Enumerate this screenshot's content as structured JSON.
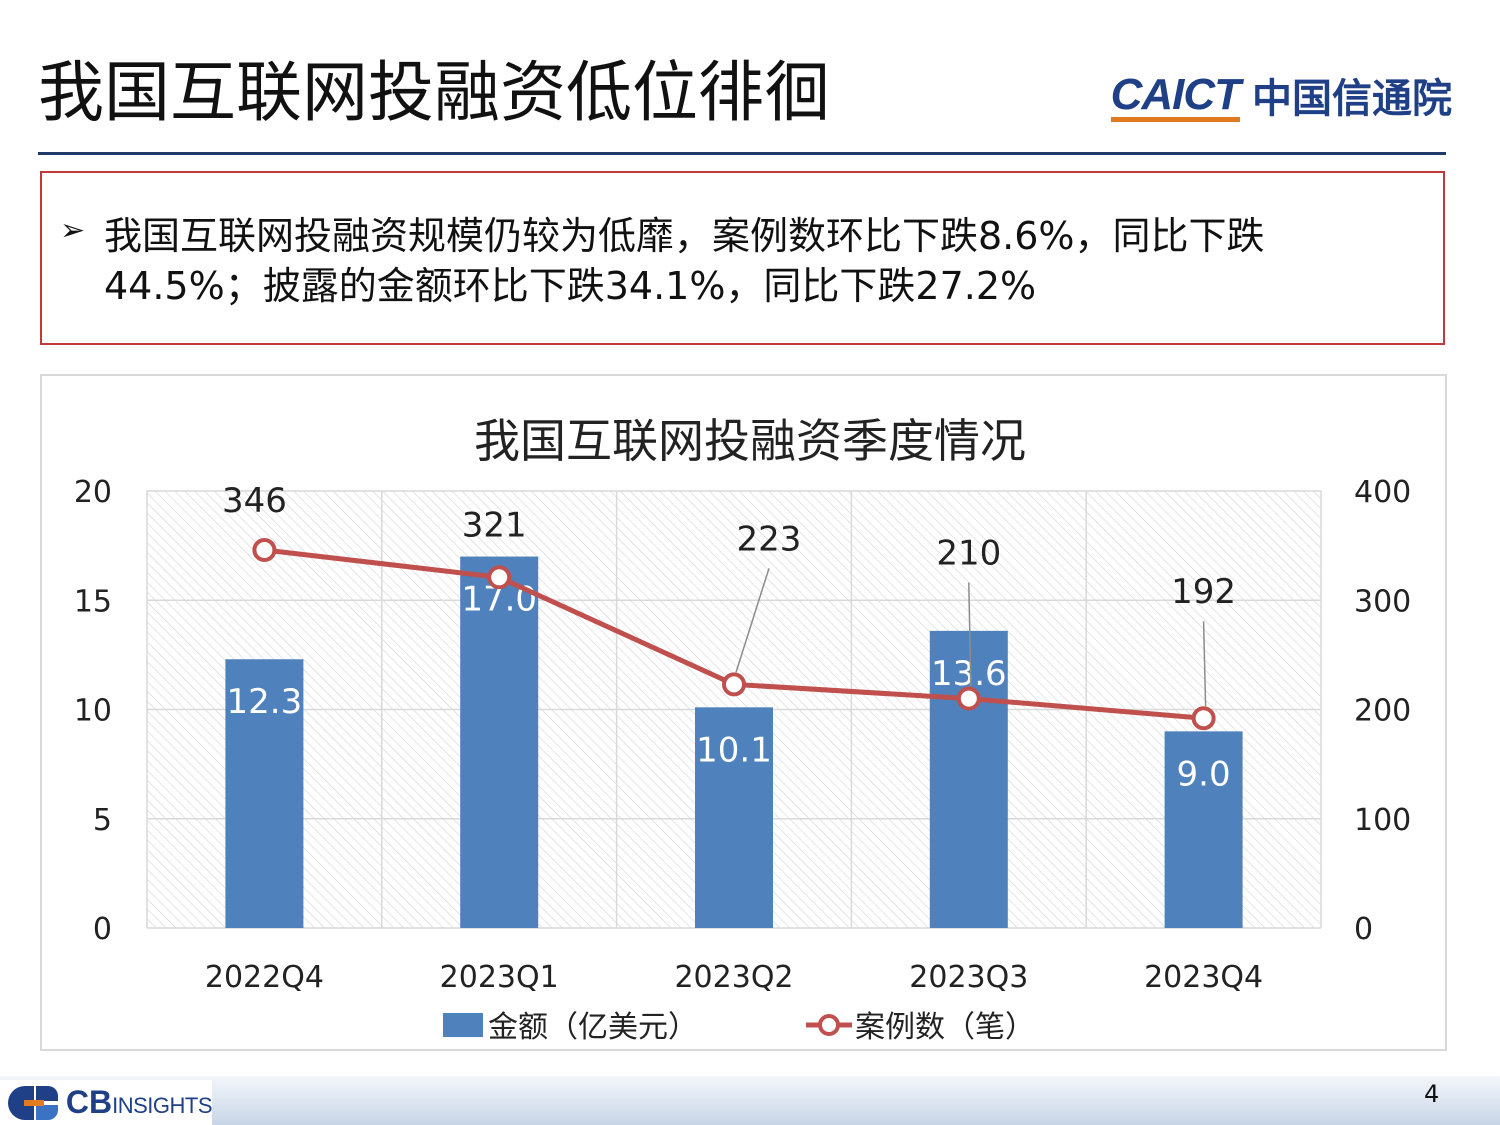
{
  "slide": {
    "title": "我国互联网投融资低位徘徊",
    "logo_en": "CAICT",
    "logo_zh": "中国信通院",
    "summary_bullet": "➢",
    "summary_text": "我国互联网投融资规模仍较为低靡，案例数环比下跌8.6%，同比下跌44.5%；披露的金额环比下跌34.1%，同比下跌27.2%",
    "footer_logo_cb": "CB",
    "footer_logo_insights": "INSIGHTS",
    "page_number": "4"
  },
  "colors": {
    "bar": "#4f81bd",
    "line": "#c0504d",
    "title_rule": "#1f3a6a",
    "box_border": "#c0393b"
  },
  "chart_data": {
    "type": "bar",
    "title": "我国互联网投融资季度情况",
    "categories": [
      "2022Q4",
      "2023Q1",
      "2023Q2",
      "2023Q3",
      "2023Q4"
    ],
    "series": [
      {
        "name": "金额（亿美元）",
        "type": "bar",
        "axis": "left",
        "values": [
          12.3,
          17.0,
          10.1,
          13.6,
          9.0
        ],
        "labels": [
          "12.3",
          "17.0",
          "10.1",
          "13.6",
          "9.0"
        ]
      },
      {
        "name": "案例数（笔）",
        "type": "line",
        "axis": "right",
        "values": [
          346,
          321,
          223,
          210,
          192
        ],
        "labels": [
          "346",
          "321",
          "223",
          "210",
          "192"
        ]
      }
    ],
    "y_left": {
      "range": [
        0,
        20
      ],
      "ticks": [
        "0",
        "5",
        "10",
        "15",
        "20"
      ]
    },
    "y_right": {
      "range": [
        0,
        400
      ],
      "ticks": [
        "0",
        "100",
        "200",
        "300",
        "400"
      ]
    },
    "grid": true,
    "legend": "bottom"
  }
}
